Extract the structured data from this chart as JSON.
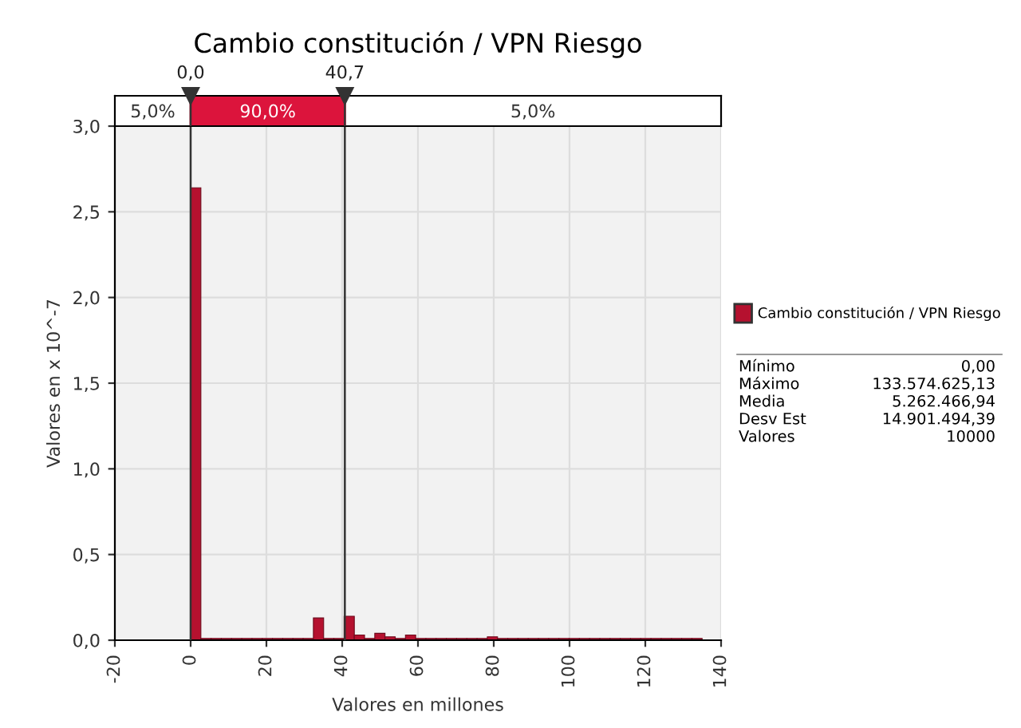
{
  "chart_data": {
    "type": "histogram",
    "title": "Cambio constitución / VPN Riesgo",
    "xlabel": "Valores en millones",
    "ylabel": "Valores en x 10^-7",
    "bins": [
      0,
      2.7,
      5.4,
      8.1,
      10.8,
      13.5,
      16.2,
      18.9,
      21.6,
      24.3,
      27,
      29.7,
      32.4,
      35.1,
      37.8,
      40.5,
      43.2,
      45.9,
      48.6,
      51.3,
      54,
      56.7,
      59.4,
      62.1,
      64.8,
      67.5,
      70.2,
      72.9,
      75.6,
      78.3,
      81,
      83.7,
      86.4,
      89.1,
      91.8,
      94.5,
      97.2,
      99.9,
      102.6,
      105.3,
      108,
      110.7,
      113.4,
      116.1,
      118.8,
      121.5,
      124.2,
      126.9,
      129.6,
      132.3,
      135
    ],
    "series": [
      {
        "name": "Cambio constitución / VPN Riesgo",
        "color": "#b5112f",
        "values": [
          2.64,
          0.01,
          0.01,
          0.01,
          0.01,
          0.01,
          0.01,
          0.01,
          0.01,
          0.01,
          0.01,
          0.01,
          0.13,
          0.01,
          0.01,
          0.14,
          0.03,
          0.01,
          0.04,
          0.02,
          0.01,
          0.03,
          0.01,
          0.01,
          0.01,
          0.01,
          0.01,
          0.01,
          0.01,
          0.02,
          0.01,
          0.01,
          0.01,
          0.01,
          0.01,
          0.01,
          0.01,
          0.01,
          0.01,
          0.01,
          0.01,
          0.01,
          0.01,
          0.01,
          0.01,
          0.01,
          0.01,
          0.01,
          0.01,
          0.01
        ]
      }
    ],
    "xlim": [
      -20,
      140
    ],
    "xticks": [
      -20,
      0,
      20,
      40,
      60,
      80,
      100,
      120,
      140
    ],
    "ylim": [
      0,
      3
    ],
    "yticks": [
      {
        "value": 0,
        "label": "0,0"
      },
      {
        "value": 0.5,
        "label": "0,5"
      },
      {
        "value": 1,
        "label": "1,0"
      },
      {
        "value": 1.5,
        "label": "1,5"
      },
      {
        "value": 2,
        "label": "2,0"
      },
      {
        "value": 2.5,
        "label": "2,5"
      },
      {
        "value": 3,
        "label": "3,0"
      }
    ],
    "ref_lines": [
      {
        "axis": "x",
        "value": 0,
        "label": "0,0",
        "color": "#333333"
      },
      {
        "axis": "x",
        "value": 40.7,
        "label": "40,7",
        "color": "#333333"
      }
    ],
    "annotations": [
      "5,0%",
      "90,0%",
      "5,0%",
      "Mínimo",
      "0,00",
      "Máximo",
      "133.574.625,13",
      "Media",
      "5.262.466,94",
      "Desv Est",
      "14.901.494,39",
      "Valores",
      "10000"
    ],
    "grid": true,
    "legend": "right"
  }
}
